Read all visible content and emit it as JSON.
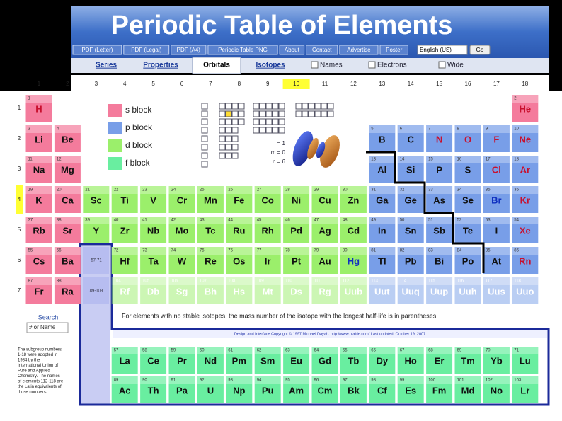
{
  "header": {
    "title": "Periodic Table of Elements",
    "nav": [
      "PDF (Letter)",
      "PDF (Legal)",
      "PDF (A4)",
      "Periodic Table PNG",
      "About",
      "Contact",
      "Advertise",
      "Poster"
    ],
    "language": "English (US)",
    "go": "Go"
  },
  "tabs": {
    "links": [
      "Series",
      "Properties",
      "Orbitals",
      "Isotopes"
    ],
    "active": "Orbitals",
    "checkboxes": [
      "Names",
      "Electrons",
      "Wide"
    ]
  },
  "groups": [
    1,
    2,
    3,
    4,
    5,
    6,
    7,
    8,
    9,
    10,
    11,
    12,
    13,
    14,
    15,
    16,
    17,
    18
  ],
  "periods": [
    1,
    2,
    3,
    4,
    5,
    6,
    7
  ],
  "selected": {
    "group": 10,
    "period": 4
  },
  "legend": [
    {
      "label": "s block",
      "color": "#f47b9c"
    },
    {
      "label": "p block",
      "color": "#789ee8"
    },
    {
      "label": "d block",
      "color": "#9bef6b"
    },
    {
      "label": "f block",
      "color": "#69eea0"
    }
  ],
  "orbital": {
    "labels": [
      "l = 1",
      "m = 0",
      "n = 6"
    ]
  },
  "series_ranges": [
    "57-71",
    "89-103"
  ],
  "elements": [
    {
      "n": 1,
      "s": "H",
      "c": "#c8102e"
    },
    {
      "n": 2,
      "s": "He",
      "c": "#c8102e"
    },
    {
      "n": 3,
      "s": "Li"
    },
    {
      "n": 4,
      "s": "Be"
    },
    {
      "n": 5,
      "s": "B"
    },
    {
      "n": 6,
      "s": "C"
    },
    {
      "n": 7,
      "s": "N",
      "c": "#c8102e"
    },
    {
      "n": 8,
      "s": "O",
      "c": "#c8102e"
    },
    {
      "n": 9,
      "s": "F",
      "c": "#c8102e"
    },
    {
      "n": 10,
      "s": "Ne",
      "c": "#c8102e"
    },
    {
      "n": 11,
      "s": "Na"
    },
    {
      "n": 12,
      "s": "Mg"
    },
    {
      "n": 13,
      "s": "Al"
    },
    {
      "n": 14,
      "s": "Si"
    },
    {
      "n": 15,
      "s": "P"
    },
    {
      "n": 16,
      "s": "S"
    },
    {
      "n": 17,
      "s": "Cl",
      "c": "#c8102e"
    },
    {
      "n": 18,
      "s": "Ar",
      "c": "#c8102e"
    },
    {
      "n": 19,
      "s": "K"
    },
    {
      "n": 20,
      "s": "Ca"
    },
    {
      "n": 21,
      "s": "Sc"
    },
    {
      "n": 22,
      "s": "Ti"
    },
    {
      "n": 23,
      "s": "V"
    },
    {
      "n": 24,
      "s": "Cr"
    },
    {
      "n": 25,
      "s": "Mn"
    },
    {
      "n": 26,
      "s": "Fe"
    },
    {
      "n": 27,
      "s": "Co"
    },
    {
      "n": 28,
      "s": "Ni"
    },
    {
      "n": 29,
      "s": "Cu"
    },
    {
      "n": 30,
      "s": "Zn"
    },
    {
      "n": 31,
      "s": "Ga"
    },
    {
      "n": 32,
      "s": "Ge"
    },
    {
      "n": 33,
      "s": "As"
    },
    {
      "n": 34,
      "s": "Se"
    },
    {
      "n": 35,
      "s": "Br",
      "c": "#1030c0"
    },
    {
      "n": 36,
      "s": "Kr",
      "c": "#c8102e"
    },
    {
      "n": 37,
      "s": "Rb"
    },
    {
      "n": 38,
      "s": "Sr"
    },
    {
      "n": 39,
      "s": "Y"
    },
    {
      "n": 40,
      "s": "Zr"
    },
    {
      "n": 41,
      "s": "Nb"
    },
    {
      "n": 42,
      "s": "Mo"
    },
    {
      "n": 43,
      "s": "Tc"
    },
    {
      "n": 44,
      "s": "Ru"
    },
    {
      "n": 45,
      "s": "Rh"
    },
    {
      "n": 46,
      "s": "Pd"
    },
    {
      "n": 47,
      "s": "Ag"
    },
    {
      "n": 48,
      "s": "Cd"
    },
    {
      "n": 49,
      "s": "In"
    },
    {
      "n": 50,
      "s": "Sn"
    },
    {
      "n": 51,
      "s": "Sb"
    },
    {
      "n": 52,
      "s": "Te"
    },
    {
      "n": 53,
      "s": "I"
    },
    {
      "n": 54,
      "s": "Xe",
      "c": "#c8102e"
    },
    {
      "n": 55,
      "s": "Cs"
    },
    {
      "n": 56,
      "s": "Ba"
    },
    {
      "n": 57,
      "s": "La"
    },
    {
      "n": 58,
      "s": "Ce"
    },
    {
      "n": 59,
      "s": "Pr"
    },
    {
      "n": 60,
      "s": "Nd"
    },
    {
      "n": 61,
      "s": "Pm"
    },
    {
      "n": 62,
      "s": "Sm"
    },
    {
      "n": 63,
      "s": "Eu"
    },
    {
      "n": 64,
      "s": "Gd"
    },
    {
      "n": 65,
      "s": "Tb"
    },
    {
      "n": 66,
      "s": "Dy"
    },
    {
      "n": 67,
      "s": "Ho"
    },
    {
      "n": 68,
      "s": "Er"
    },
    {
      "n": 69,
      "s": "Tm"
    },
    {
      "n": 70,
      "s": "Yb"
    },
    {
      "n": 71,
      "s": "Lu"
    },
    {
      "n": 72,
      "s": "Hf"
    },
    {
      "n": 73,
      "s": "Ta"
    },
    {
      "n": 74,
      "s": "W"
    },
    {
      "n": 75,
      "s": "Re"
    },
    {
      "n": 76,
      "s": "Os"
    },
    {
      "n": 77,
      "s": "Ir"
    },
    {
      "n": 78,
      "s": "Pt"
    },
    {
      "n": 79,
      "s": "Au"
    },
    {
      "n": 80,
      "s": "Hg",
      "c": "#1030c0"
    },
    {
      "n": 81,
      "s": "Tl"
    },
    {
      "n": 82,
      "s": "Pb"
    },
    {
      "n": 83,
      "s": "Bi"
    },
    {
      "n": 84,
      "s": "Po"
    },
    {
      "n": 85,
      "s": "At"
    },
    {
      "n": 86,
      "s": "Rn",
      "c": "#c8102e"
    },
    {
      "n": 87,
      "s": "Fr"
    },
    {
      "n": 88,
      "s": "Ra"
    },
    {
      "n": 89,
      "s": "Ac"
    },
    {
      "n": 90,
      "s": "Th"
    },
    {
      "n": 91,
      "s": "Pa"
    },
    {
      "n": 92,
      "s": "U"
    },
    {
      "n": 93,
      "s": "Np"
    },
    {
      "n": 94,
      "s": "Pu"
    },
    {
      "n": 95,
      "s": "Am"
    },
    {
      "n": 96,
      "s": "Cm"
    },
    {
      "n": 97,
      "s": "Bk"
    },
    {
      "n": 98,
      "s": "Cf"
    },
    {
      "n": 99,
      "s": "Es"
    },
    {
      "n": 100,
      "s": "Fm"
    },
    {
      "n": 101,
      "s": "Md"
    },
    {
      "n": 102,
      "s": "No"
    },
    {
      "n": 103,
      "s": "Lr"
    },
    {
      "n": 104,
      "s": "Rf",
      "faded": true
    },
    {
      "n": 105,
      "s": "Db",
      "faded": true
    },
    {
      "n": 106,
      "s": "Sg",
      "faded": true
    },
    {
      "n": 107,
      "s": "Bh",
      "faded": true
    },
    {
      "n": 108,
      "s": "Hs",
      "faded": true
    },
    {
      "n": 109,
      "s": "Mt",
      "faded": true
    },
    {
      "n": 110,
      "s": "Ds",
      "faded": true
    },
    {
      "n": 111,
      "s": "Rg",
      "faded": true
    },
    {
      "n": 112,
      "s": "Uub",
      "faded": true
    },
    {
      "n": 113,
      "s": "Uut",
      "faded": true
    },
    {
      "n": 114,
      "s": "Uuq",
      "faded": true
    },
    {
      "n": 115,
      "s": "Uup",
      "faded": true
    },
    {
      "n": 116,
      "s": "Uuh",
      "faded": true
    },
    {
      "n": 117,
      "s": "Uus",
      "faded": true
    },
    {
      "n": 118,
      "s": "Uuo",
      "faded": true
    }
  ],
  "note": "For elements with no stable isotopes, the mass number of the isotope with the longest half-life is in parentheses.",
  "copyright": "Design and Interface Copyright © 1997 Michael Dayah. http://www.ptable.com/ Last updated: October 19, 2007",
  "search": {
    "label": "Search",
    "placeholder": "# or Name"
  },
  "footnote": [
    "The subgroup numbers",
    "1-18 were adopted in",
    "1984 by the",
    "International Union of",
    "Pure and Applied",
    "Chemistry. The names",
    "of elements 112-118 are",
    "the Latin equivalents of",
    "those numbers."
  ]
}
